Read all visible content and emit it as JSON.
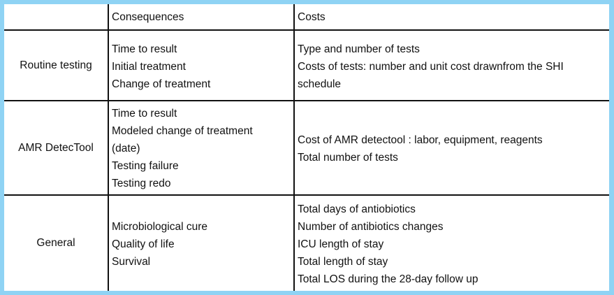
{
  "table": {
    "headers": {
      "blank": "",
      "consequences": "Consequences",
      "costs": "Costs"
    },
    "rows": [
      {
        "label": "Routine testing",
        "consequences": [
          "Time to result",
          "Initial treatment",
          "Change of treatment"
        ],
        "costs": [
          "Type and number of tests",
          "Costs of tests: number and unit cost drawnfrom the SHI",
          "schedule"
        ]
      },
      {
        "label": "AMR DetecTool",
        "consequences": [
          "Time to result",
          "Modeled change of treatment",
          "(date)",
          "Testing failure",
          "Testing redo"
        ],
        "costs": [
          "Cost of AMR detectool : labor, equipment, reagents",
          "Total number of tests"
        ]
      },
      {
        "label": "General",
        "consequences": [
          "Microbiological cure",
          "Quality of life",
          "Survival"
        ],
        "costs": [
          "Total days of antiobiotics",
          "Number of antibiotics changes",
          "ICU length of stay",
          "Total length of stay",
          "Total LOS during the 28-day follow up"
        ]
      }
    ]
  },
  "colors": {
    "frame": "#8fd3f4",
    "background": "#ffffff",
    "grid": "#111111",
    "text": "#111111"
  }
}
